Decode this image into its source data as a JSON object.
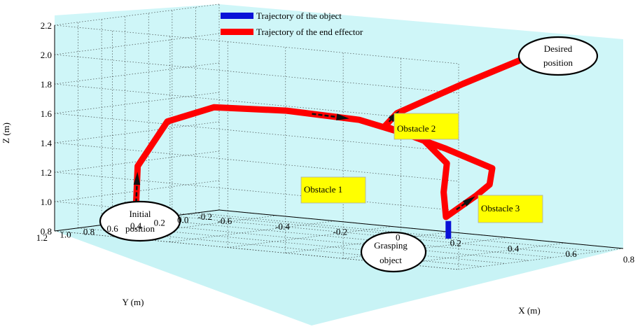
{
  "chart_data": {
    "type": "line",
    "dimensions": 3,
    "xlabel": "X (m)",
    "ylabel": "Y (m)",
    "zlabel": "Z (m)",
    "xlim": [
      -0.6,
      0.8
    ],
    "ylim": [
      -0.2,
      1.2
    ],
    "zlim": [
      0.8,
      2.2
    ],
    "x_ticks": [
      "-0.6",
      "-0.4",
      "-0.2",
      "0",
      "0.2",
      "0.4",
      "0.6",
      "0.8"
    ],
    "y_ticks": [
      "-0.2",
      "0.0",
      "0.2",
      "0.4",
      "0.6",
      "0.8",
      "1.0",
      "1.2"
    ],
    "z_ticks": [
      "0.8",
      "1.0",
      "1.2",
      "1.4",
      "1.6",
      "1.8",
      "2.0",
      "2.2"
    ],
    "grid": true,
    "legend_position": "top-center",
    "colors": {
      "pane": "#cff6f8",
      "floor": "#c8f3f5",
      "object": "#0a12d8",
      "effector": "#ff0000",
      "callout": "#ffff00"
    },
    "series": [
      {
        "name": "Trajectory of the object",
        "color": "#0a12d8",
        "points": [
          [
            0.3,
            0.06,
            0.8
          ],
          [
            0.3,
            0.06,
            0.92
          ]
        ]
      },
      {
        "name": "Trajectory of the end effector",
        "color": "#ff0000",
        "points": [
          [
            -0.3,
            1.25,
            0.92
          ],
          [
            -0.3,
            1.23,
            1.3
          ],
          [
            -0.25,
            1.1,
            1.6
          ],
          [
            -0.15,
            0.95,
            1.7
          ],
          [
            0.0,
            0.7,
            1.68
          ],
          [
            0.15,
            0.45,
            1.62
          ],
          [
            0.3,
            0.28,
            1.5
          ],
          [
            0.36,
            0.22,
            1.34
          ],
          [
            0.3,
            0.1,
            1.12
          ],
          [
            0.3,
            0.08,
            0.95
          ],
          [
            0.42,
            0.12,
            1.12
          ],
          [
            0.5,
            0.2,
            1.22
          ],
          [
            0.55,
            0.3,
            1.35
          ],
          [
            0.45,
            0.45,
            1.48
          ],
          [
            0.3,
            0.6,
            1.62
          ],
          [
            0.35,
            0.62,
            1.72
          ],
          [
            0.55,
            0.55,
            1.95
          ],
          [
            0.75,
            0.55,
            2.15
          ]
        ]
      }
    ],
    "annotations": [
      {
        "id": "initial",
        "shape": "ellipse",
        "text": [
          "Initial",
          "position"
        ]
      },
      {
        "id": "grasping",
        "shape": "ellipse",
        "text": [
          "Grasping",
          "object"
        ]
      },
      {
        "id": "desired",
        "shape": "ellipse",
        "text": [
          "Desired",
          "position"
        ]
      },
      {
        "id": "obstacle1",
        "shape": "box",
        "text": [
          "Obstacle 1"
        ]
      },
      {
        "id": "obstacle2",
        "shape": "box",
        "text": [
          "Obstacle 2"
        ]
      },
      {
        "id": "obstacle3",
        "shape": "box",
        "text": [
          "Obstacle 3"
        ]
      }
    ]
  }
}
